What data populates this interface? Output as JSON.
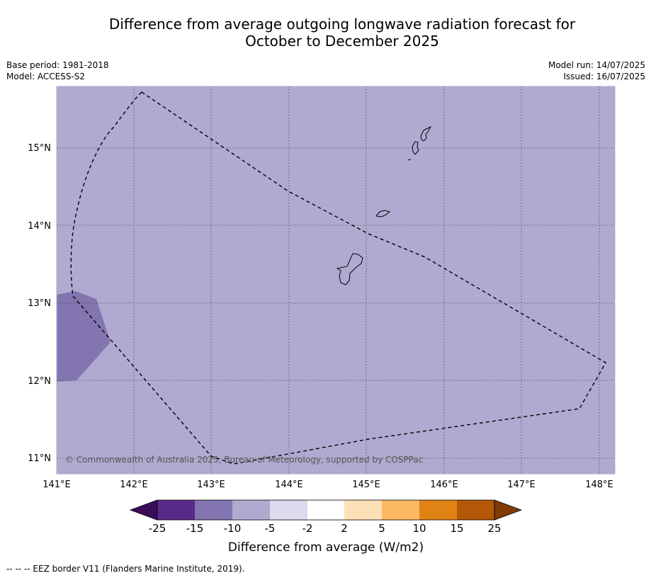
{
  "header": {
    "title_line1": "Difference from average outgoing longwave radiation forecast for",
    "title_line2": "October to December 2025"
  },
  "meta": {
    "base_period": "Base period: 1981-2018",
    "model": "Model: ACCESS-S2",
    "model_run": "Model run: 14/07/2025",
    "issued": "Issued: 16/07/2025"
  },
  "map": {
    "background_color": "#b0aad0",
    "anomaly_patch_color": "#8275b0",
    "copyright": "© Commonwealth of Australia 2025, Bureau of Meteorology, supported by COSPPac",
    "lat_labels": [
      "15°N",
      "14°N",
      "13°N",
      "12°N",
      "11°N"
    ],
    "lon_labels": [
      "141°E",
      "142°E",
      "143°E",
      "144°E",
      "145°E",
      "146°E",
      "147°E",
      "148°E"
    ]
  },
  "colorbar": {
    "label": "Difference from average (W/m2)",
    "ticks": [
      "-25",
      "-15",
      "-10",
      "-5",
      "-2",
      "2",
      "5",
      "10",
      "15",
      "25"
    ],
    "colors": [
      "#3b0c5a",
      "#5a2a8a",
      "#8275b0",
      "#b0aad0",
      "#dcdaec",
      "#ffffff",
      "#fde0b6",
      "#fdb863",
      "#e08214",
      "#b35806",
      "#7f3b08"
    ]
  },
  "footer": {
    "legend_text": "--  --  -- EEZ border V11 (Flanders Marine Institute, 2019)."
  }
}
